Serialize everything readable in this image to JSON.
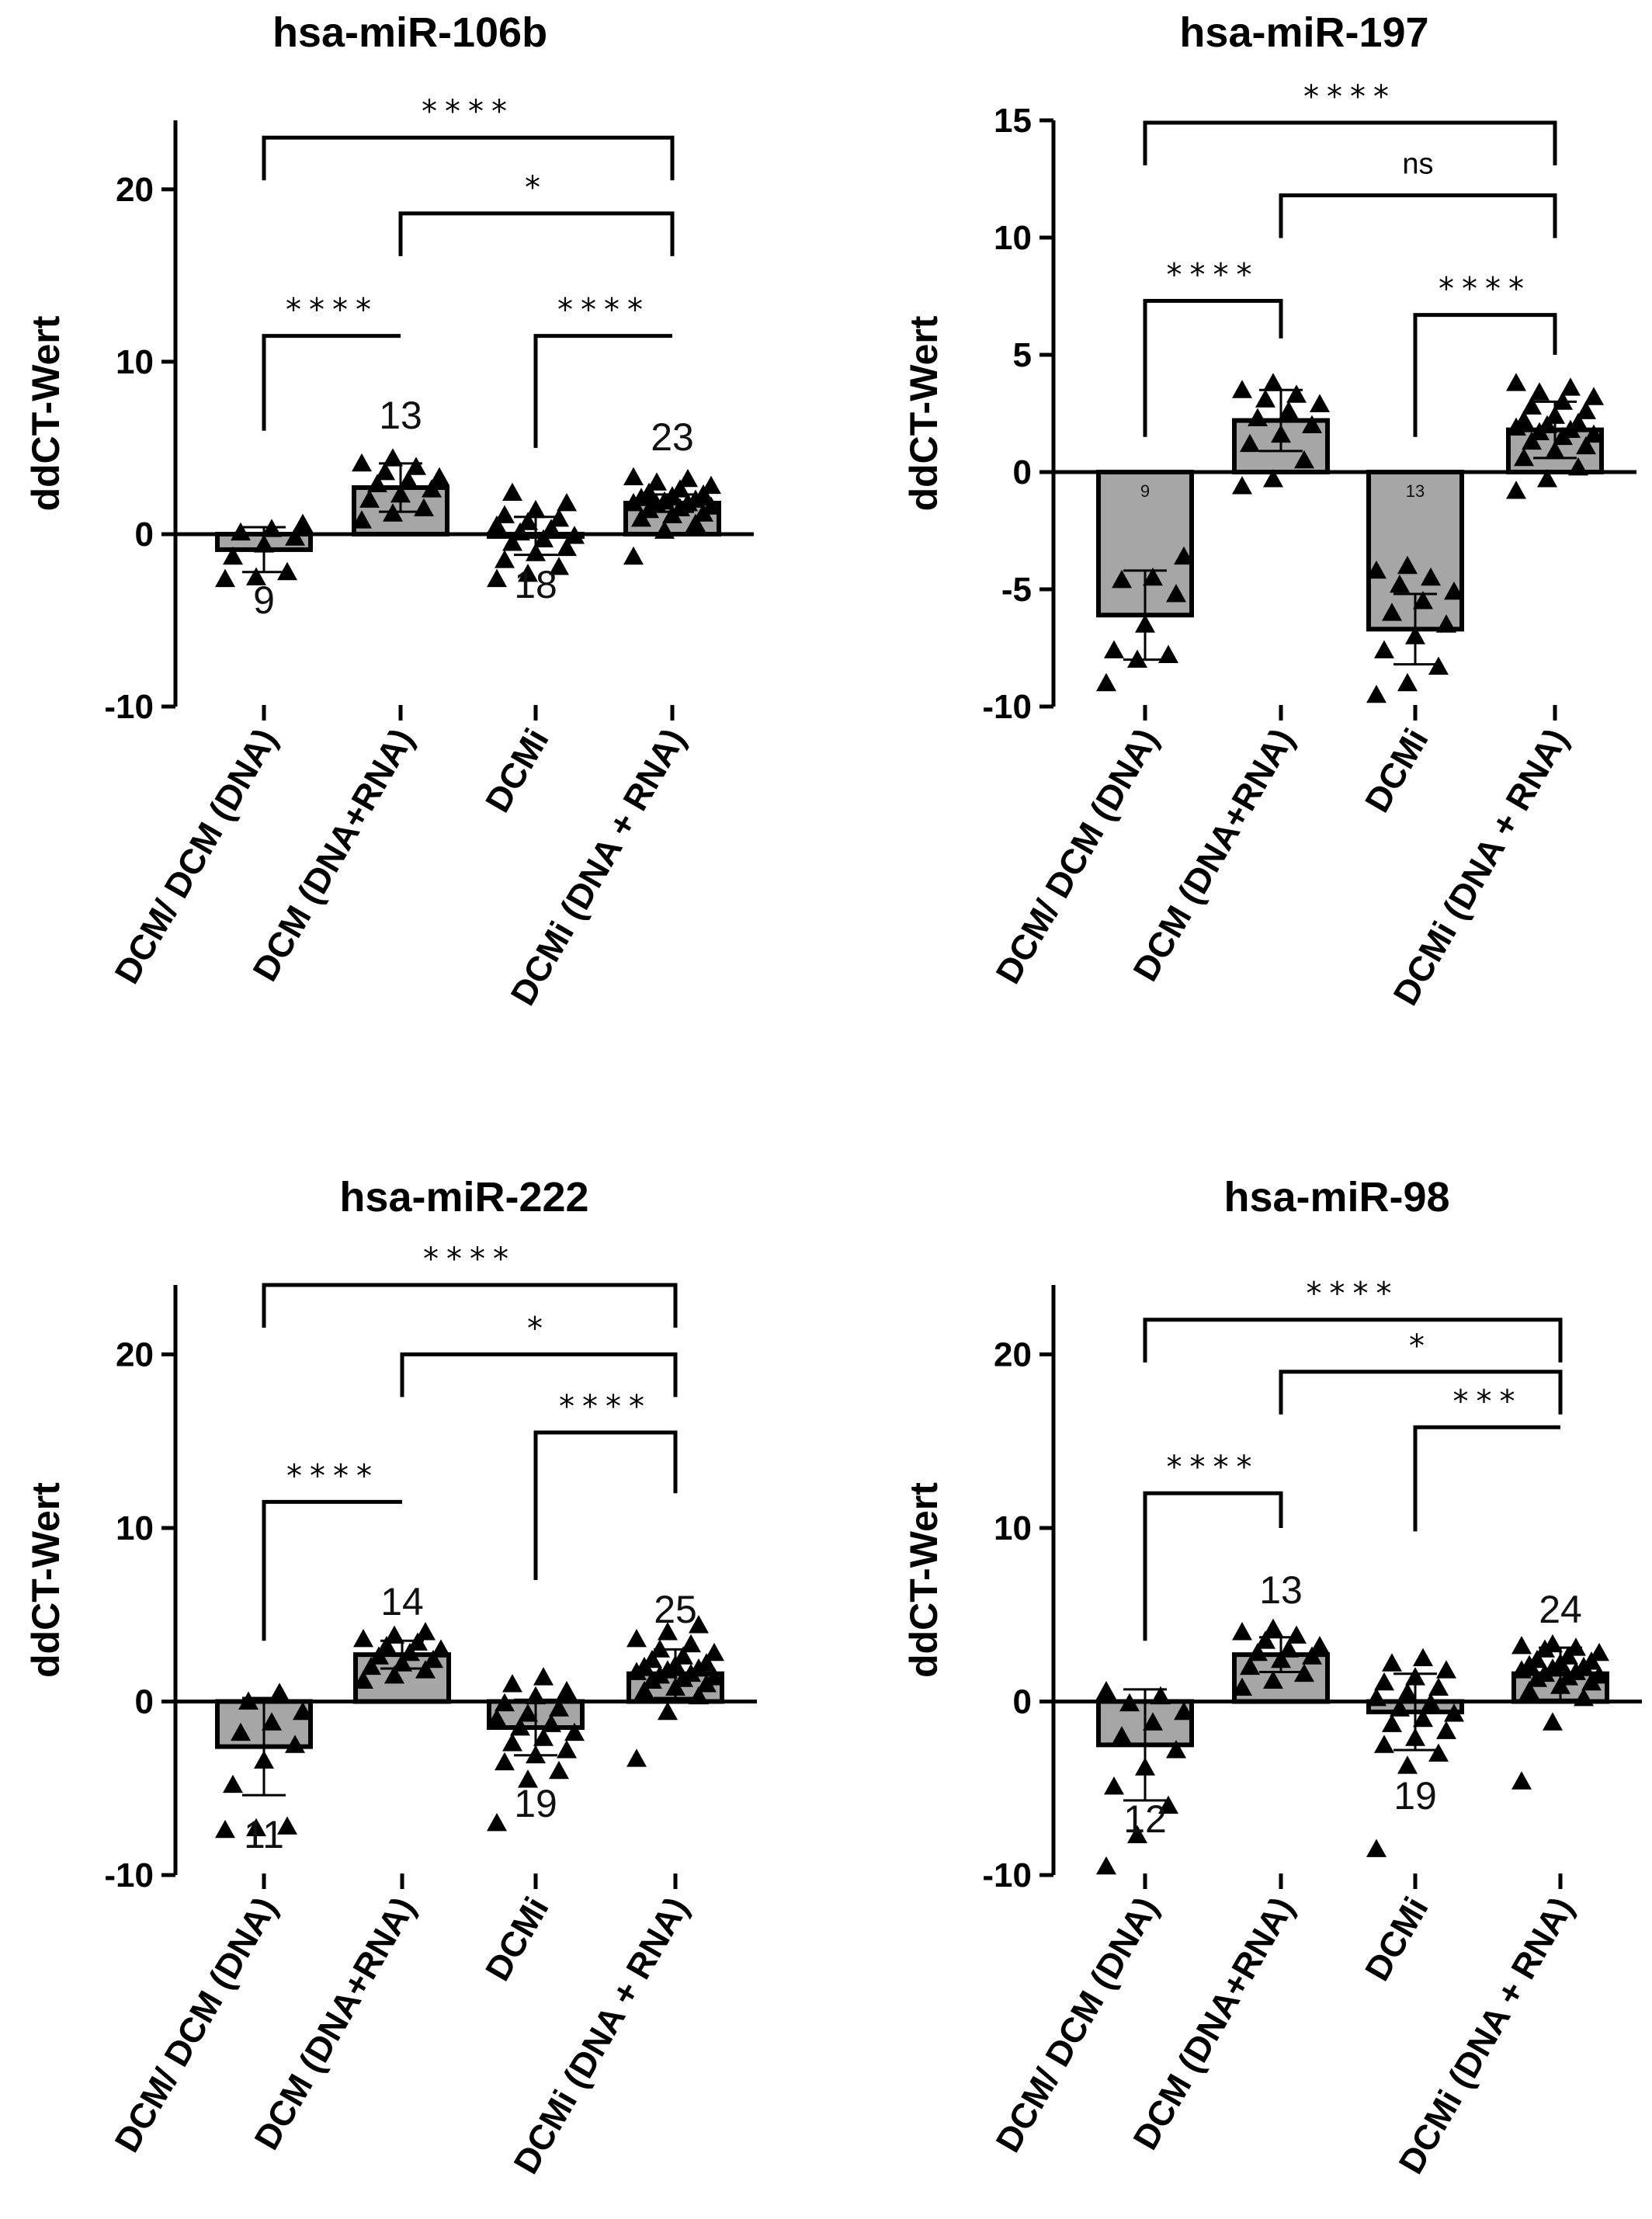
{
  "chart_data": [
    {
      "type": "bar",
      "title": "hsa-miR-106b",
      "ylabel": "ddCT-Wert",
      "categories": [
        "DCM/ DCM (DNA)",
        "DCM (DNA+RNA)",
        "DCMi",
        "DCMi (DNA + RNA)"
      ],
      "values": [
        -0.9,
        2.7,
        -0.1,
        1.8
      ],
      "sd": [
        1.3,
        1.4,
        1.1,
        0.5
      ],
      "n_labels": [
        "9",
        "13",
        "18",
        "23"
      ],
      "ylim": [
        -10,
        24
      ],
      "yticks": [
        -10,
        0,
        10,
        20
      ],
      "points": [
        [
          -2.6,
          -2.5,
          -2.2,
          -1.3,
          -0.6,
          -0.2,
          0.1,
          0.3,
          0.6
        ],
        [
          0.8,
          1.2,
          1.5,
          2.0,
          2.3,
          2.6,
          2.9,
          3.1,
          3.3,
          3.6,
          3.9,
          4.1,
          4.4
        ],
        [
          -2.6,
          -2.3,
          -1.9,
          -1.5,
          -1.1,
          -0.8,
          -0.5,
          -0.3,
          -0.1,
          0.1,
          0.3,
          0.5,
          0.7,
          0.9,
          1.1,
          1.4,
          1.8,
          2.4
        ],
        [
          -1.3,
          0.2,
          0.6,
          0.9,
          1.1,
          1.2,
          1.4,
          1.5,
          1.6,
          1.7,
          1.8,
          1.8,
          1.9,
          2.0,
          2.1,
          2.2,
          2.3,
          2.4,
          2.6,
          2.8,
          3.0,
          3.2,
          3.3
        ]
      ],
      "comparisons": [
        {
          "from": 0,
          "to": 3,
          "label": "****",
          "y": 23.0
        },
        {
          "from": 1,
          "to": 3,
          "label": "*",
          "y": 18.6
        },
        {
          "from": 0,
          "to": 1,
          "label": "****",
          "y": 11.5,
          "y_from": 6.0,
          "y_to": 11.5
        },
        {
          "from": 2,
          "to": 3,
          "label": "****",
          "y": 11.5,
          "y_from": 5.0,
          "y_to": 11.5
        }
      ]
    },
    {
      "type": "bar",
      "title": "hsa-miR-197",
      "ylabel": "ddCT-Wert",
      "categories": [
        "DCM/ DCM (DNA)",
        "DCM (DNA+RNA)",
        "DCMi",
        "DCMi (DNA + RNA)"
      ],
      "values": [
        -6.1,
        2.2,
        -6.7,
        1.8
      ],
      "sd": [
        1.9,
        1.3,
        1.5,
        1.2
      ],
      "n_labels": [
        "9",
        "",
        "13",
        ""
      ],
      "ylim": [
        -10,
        15
      ],
      "yticks": [
        -10,
        -5,
        0,
        5,
        10,
        15
      ],
      "points": [
        [
          -9.0,
          -8.0,
          -7.8,
          -7.6,
          -6.5,
          -5.2,
          -4.6,
          -4.5,
          -3.6
        ],
        [
          -0.6,
          -0.3,
          0.5,
          1.2,
          1.6,
          2.0,
          2.3,
          2.6,
          2.9,
          3.1,
          3.3,
          3.5,
          3.8
        ],
        [
          -9.5,
          -9.0,
          -8.3,
          -7.6,
          -7.0,
          -6.5,
          -6.0,
          -5.5,
          -5.1,
          -4.8,
          -4.5,
          -4.2,
          -4.0
        ],
        [
          -0.8,
          -0.3,
          0.2,
          0.6,
          0.9,
          1.1,
          1.3,
          1.5,
          1.6,
          1.7,
          1.8,
          1.9,
          2.0,
          2.1,
          2.2,
          2.4,
          2.6,
          2.8,
          3.0,
          3.2,
          3.4,
          3.6,
          3.8
        ]
      ],
      "comparisons": [
        {
          "from": 0,
          "to": 3,
          "label": "****",
          "y": 14.9
        },
        {
          "from": 1,
          "to": 3,
          "label": "ns",
          "y": 11.8
        },
        {
          "from": 0,
          "to": 1,
          "label": "****",
          "y": 7.3,
          "y_from": 1.5,
          "y_to": 5.7
        },
        {
          "from": 2,
          "to": 3,
          "label": "****",
          "y": 6.7,
          "y_from": 1.5,
          "y_to": 5.0
        }
      ]
    },
    {
      "type": "bar",
      "title": "hsa-miR-222",
      "ylabel": "ddCT-Wert",
      "categories": [
        "DCM/ DCM (DNA)",
        "DCM (DNA+RNA)",
        "DCMi",
        "DCMi (DNA + RNA)"
      ],
      "values": [
        -2.6,
        2.7,
        -1.5,
        1.6
      ],
      "sd": [
        2.8,
        0.8,
        1.6,
        1.4
      ],
      "n_labels": [
        "11",
        "14",
        "19",
        "25"
      ],
      "ylim": [
        -10,
        24
      ],
      "yticks": [
        -10,
        0,
        10,
        20
      ],
      "points": [
        [
          -7.4,
          -7.3,
          -7.2,
          -4.8,
          -3.4,
          -2.5,
          -1.8,
          -1.2,
          -0.6,
          0.0,
          0.5
        ],
        [
          1.2,
          1.5,
          1.8,
          2.0,
          2.2,
          2.4,
          2.6,
          2.8,
          3.0,
          3.2,
          3.4,
          3.6,
          3.8,
          4.0
        ],
        [
          -7.0,
          -4.5,
          -4.0,
          -3.5,
          -3.1,
          -2.8,
          -2.4,
          -2.1,
          -1.8,
          -1.5,
          -1.3,
          -1.0,
          -0.7,
          -0.4,
          -0.1,
          0.3,
          0.6,
          1.0,
          1.4
        ],
        [
          -3.3,
          -0.6,
          0.3,
          0.6,
          0.8,
          1.0,
          1.2,
          1.3,
          1.4,
          1.5,
          1.6,
          1.7,
          1.8,
          1.9,
          2.0,
          2.1,
          2.2,
          2.4,
          2.6,
          2.8,
          3.0,
          3.3,
          3.6,
          4.0,
          4.4
        ]
      ],
      "comparisons": [
        {
          "from": 0,
          "to": 3,
          "label": "****",
          "y": 24.0
        },
        {
          "from": 1,
          "to": 3,
          "label": "*",
          "y": 20.0
        },
        {
          "from": 0,
          "to": 1,
          "label": "****",
          "y": 11.5,
          "y_from": 3.5,
          "y_to": 11.5
        },
        {
          "from": 2,
          "to": 3,
          "label": "****",
          "y": 15.5,
          "y_from": 7.0,
          "y_to": 12.0
        }
      ]
    },
    {
      "type": "bar",
      "title": "hsa-miR-98",
      "ylabel": "ddCT-Wert",
      "categories": [
        "DCM/ DCM (DNA)",
        "DCM (DNA+RNA)",
        "DCMi",
        "DCMi (DNA + RNA)"
      ],
      "values": [
        -2.5,
        2.7,
        -0.6,
        1.6
      ],
      "sd": [
        3.2,
        1.0,
        2.2,
        1.5
      ],
      "n_labels": [
        "12",
        "13",
        "19",
        "24"
      ],
      "ylim": [
        -10,
        24
      ],
      "yticks": [
        -10,
        0,
        10,
        20
      ],
      "points": [
        [
          -9.5,
          -7.7,
          -6.0,
          -4.9,
          -3.8,
          -2.8,
          -2.0,
          -1.2,
          -0.6,
          -0.1,
          0.3,
          0.6
        ],
        [
          0.8,
          1.2,
          1.6,
          2.0,
          2.4,
          2.6,
          2.8,
          3.0,
          3.2,
          3.5,
          3.8,
          4.0,
          4.2
        ],
        [
          -8.5,
          -3.7,
          -3.0,
          -2.5,
          -2.1,
          -1.7,
          -1.3,
          -1.0,
          -0.7,
          -0.4,
          -0.1,
          0.2,
          0.5,
          0.8,
          1.1,
          1.4,
          1.8,
          2.2,
          2.5
        ],
        [
          -4.6,
          -1.2,
          0.2,
          0.6,
          0.9,
          1.1,
          1.3,
          1.4,
          1.5,
          1.6,
          1.7,
          1.8,
          1.9,
          2.0,
          2.1,
          2.2,
          2.3,
          2.4,
          2.6,
          2.8,
          3.0,
          3.1,
          3.2,
          3.3
        ]
      ],
      "comparisons": [
        {
          "from": 0,
          "to": 3,
          "label": "****",
          "y": 22.0
        },
        {
          "from": 1,
          "to": 3,
          "label": "*",
          "y": 19.0
        },
        {
          "from": 2,
          "to": 3,
          "label": "***",
          "y": 15.8,
          "y_from": 9.8,
          "y_to": 15.8
        },
        {
          "from": 0,
          "to": 1,
          "label": "****",
          "y": 12.0,
          "y_from": 3.5,
          "y_to": 10.0
        }
      ]
    }
  ],
  "style": {
    "bar_fill": "#a6a6a6",
    "bar_stroke": "#000000",
    "marker_color": "#000000",
    "marker_shape": "triangle-icon"
  }
}
